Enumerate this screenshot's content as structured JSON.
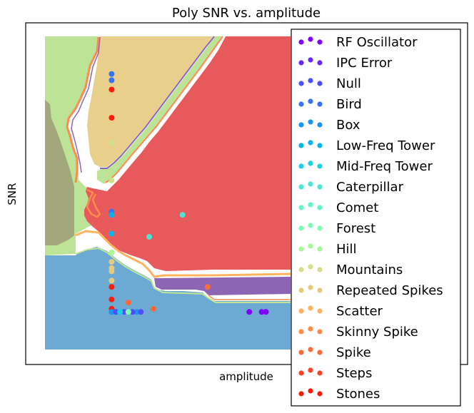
{
  "chart_data": {
    "type": "scatter",
    "title": "Poly SNR vs. amplitude",
    "xlabel": "amplitude",
    "ylabel": "SNR",
    "ticks": "none",
    "legend": {
      "position": "right",
      "entries": [
        {
          "name": "RF Oscillator",
          "color": "#8000ff"
        },
        {
          "name": "IPC Error",
          "color": "#6a2afe"
        },
        {
          "name": "Null",
          "color": "#4e4ffc"
        },
        {
          "name": "Bird",
          "color": "#3473f8"
        },
        {
          "name": "Box",
          "color": "#1996f3"
        },
        {
          "name": "Low-Freq Tower",
          "color": "#00b5eb"
        },
        {
          "name": "Mid-Freq Tower",
          "color": "#1ad0e1"
        },
        {
          "name": "Caterpillar",
          "color": "#4de4d4"
        },
        {
          "name": "Comet",
          "color": "#66f3c6"
        },
        {
          "name": "Forest",
          "color": "#81fab7"
        },
        {
          "name": "Hill",
          "color": "#a4fb95"
        },
        {
          "name": "Mountains",
          "color": "#cde289"
        },
        {
          "name": "Repeated Spikes",
          "color": "#e6cb7f"
        },
        {
          "name": "Scatter",
          "color": "#ffb360"
        },
        {
          "name": "Skinny Spike",
          "color": "#ff8c4d"
        },
        {
          "name": "Spike",
          "color": "#ff6a3a"
        },
        {
          "name": "Steps",
          "color": "#ff4326"
        },
        {
          "name": "Stones",
          "color": "#ff1a0d"
        }
      ]
    },
    "decision_regions": [
      {
        "label": "Hill",
        "color": "#bde396"
      },
      {
        "label": "Repeated Spikes",
        "color": "#e8cf8c"
      },
      {
        "label": "Stones",
        "color": "#e8595b"
      },
      {
        "label": "Mountains",
        "color": "#a3a77c"
      },
      {
        "label": "Box",
        "color": "#6ca9d3"
      },
      {
        "label": "RF Oscillator",
        "color": "#8d65b5"
      }
    ],
    "series": [
      {
        "name": "Bird",
        "color": "#3473f8",
        "points": [
          [
            0.16,
            0.88
          ],
          [
            0.16,
            0.86
          ],
          [
            0.16,
            0.44
          ]
        ]
      },
      {
        "name": "Stones",
        "color": "#ff1a0d",
        "points": [
          [
            0.16,
            0.83
          ],
          [
            0.16,
            0.74
          ],
          [
            0.16,
            0.2
          ],
          [
            0.16,
            0.16
          ],
          [
            0.16,
            0.13
          ],
          [
            0.16,
            0.12
          ]
        ]
      },
      {
        "name": "Mountains",
        "color": "#cde289",
        "points": [
          [
            0.16,
            0.66
          ],
          [
            0.16,
            0.54
          ],
          [
            0.16,
            0.31
          ]
        ]
      },
      {
        "name": "Low-Freq Tower",
        "color": "#00b5eb",
        "points": [
          [
            0.16,
            0.43
          ],
          [
            0.16,
            0.37
          ]
        ]
      },
      {
        "name": "Caterpillar",
        "color": "#4de4d4",
        "points": [
          [
            0.33,
            0.43
          ],
          [
            0.25,
            0.36
          ]
        ]
      },
      {
        "name": "Hill",
        "color": "#a4fb95",
        "points": [
          [
            0.16,
            0.31
          ]
        ]
      },
      {
        "name": "Repeated Spikes",
        "color": "#e6cb7f",
        "points": [
          [
            0.16,
            0.28
          ],
          [
            0.16,
            0.26
          ],
          [
            0.16,
            0.25
          ],
          [
            0.16,
            0.22
          ]
        ]
      },
      {
        "name": "Spike",
        "color": "#ff6a3a",
        "points": [
          [
            0.2,
            0.15
          ],
          [
            0.26,
            0.13
          ],
          [
            0.39,
            0.2
          ]
        ]
      },
      {
        "name": "Box",
        "color": "#1996f3",
        "points": [
          [
            0.16,
            0.12
          ],
          [
            0.17,
            0.12
          ],
          [
            0.18,
            0.12
          ],
          [
            0.2,
            0.12
          ],
          [
            0.22,
            0.12
          ]
        ]
      },
      {
        "name": "Null",
        "color": "#4e4ffc",
        "points": [
          [
            0.17,
            0.12
          ],
          [
            0.19,
            0.12
          ],
          [
            0.21,
            0.12
          ],
          [
            0.23,
            0.12
          ]
        ]
      },
      {
        "name": "Mid-Freq Tower",
        "color": "#1ad0e1",
        "points": [
          [
            0.18,
            0.12
          ]
        ]
      },
      {
        "name": "Forest",
        "color": "#81fab7",
        "points": [
          [
            0.2,
            0.12
          ]
        ]
      },
      {
        "name": "RF Oscillator",
        "color": "#8000ff",
        "points": [
          [
            0.49,
            0.12
          ],
          [
            0.52,
            0.12
          ],
          [
            0.53,
            0.12
          ]
        ]
      }
    ]
  }
}
